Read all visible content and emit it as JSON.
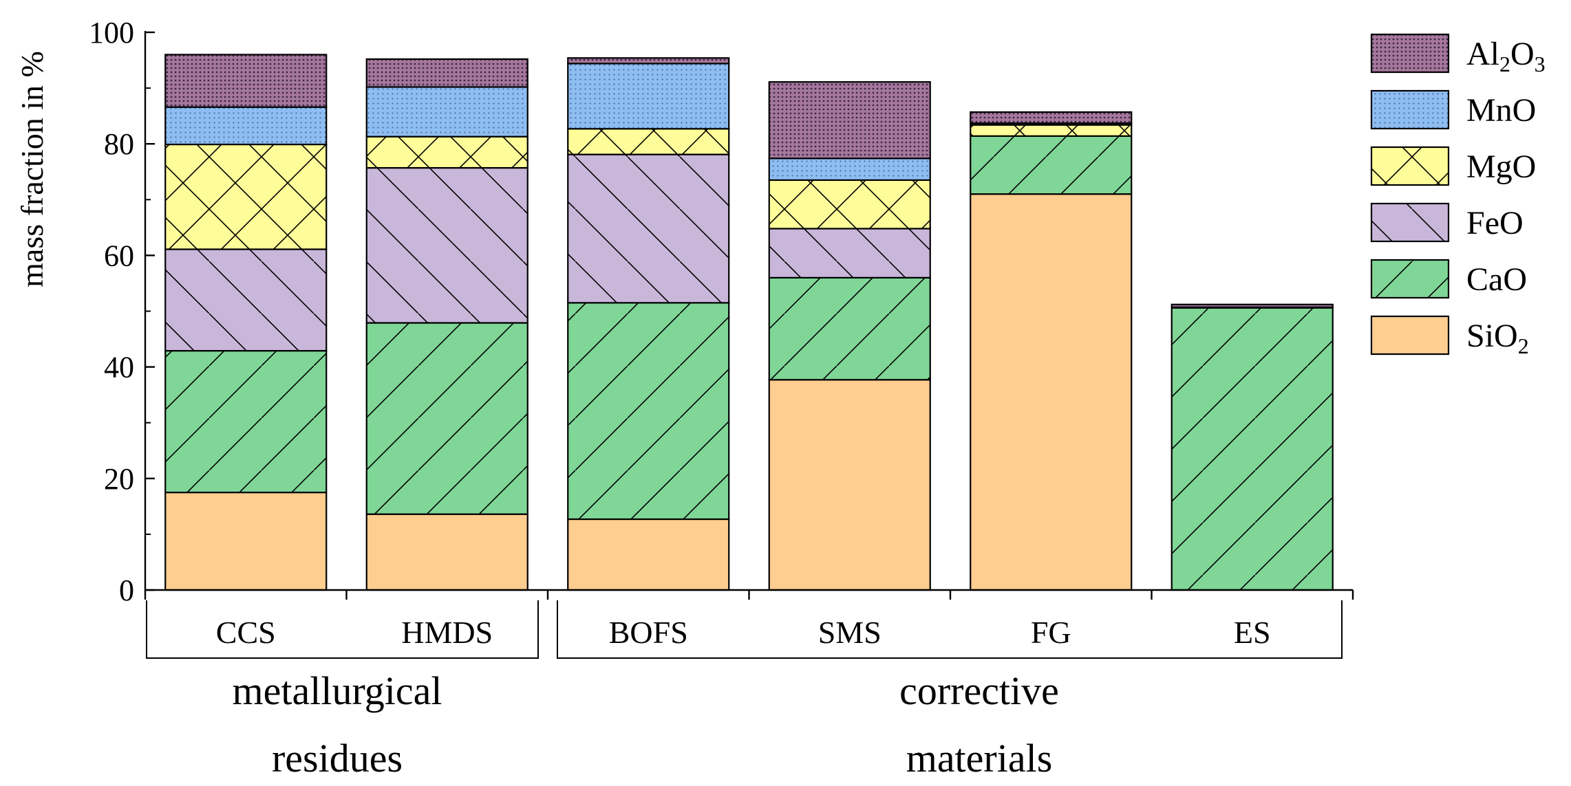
{
  "chart_data": {
    "type": "bar",
    "stacked": true,
    "ylabel": "mass fraction in %",
    "ylim": [
      0,
      100
    ],
    "yticks": [
      "0",
      "20",
      "40",
      "60",
      "80",
      "100"
    ],
    "ytick_values": [
      0,
      20,
      40,
      60,
      80,
      100
    ],
    "categories": [
      "CCS",
      "HMDS",
      "BOFS",
      "SMS",
      "FG",
      "ES"
    ],
    "groups": [
      {
        "line1": "metallurgical",
        "line2": "residues",
        "categories": [
          "CCS",
          "HMDS"
        ]
      },
      {
        "line1": "corrective",
        "line2": "materials",
        "categories": [
          "BOFS",
          "SMS",
          "FG",
          "ES"
        ]
      }
    ],
    "series": [
      {
        "name": "SiO2",
        "label_main": "SiO",
        "label_sub": "2",
        "label_tail": "",
        "color": "#FECD90",
        "pattern": "none",
        "values": [
          17.5,
          13.6,
          12.7,
          37.7,
          71.0,
          0.0
        ]
      },
      {
        "name": "CaO",
        "label_main": "CaO",
        "label_sub": "",
        "label_tail": "",
        "color": "#7FD697",
        "pattern": "diag-fwd",
        "values": [
          25.4,
          34.3,
          38.8,
          18.3,
          10.4,
          50.6
        ]
      },
      {
        "name": "FeO",
        "label_main": "FeO",
        "label_sub": "",
        "label_tail": "",
        "color": "#C9B7DA",
        "pattern": "diag-back",
        "values": [
          18.2,
          27.8,
          26.6,
          8.8,
          0.0,
          0.0
        ]
      },
      {
        "name": "MgO",
        "label_main": "MgO",
        "label_sub": "",
        "label_tail": "",
        "color": "#FFFD99",
        "pattern": "cross",
        "values": [
          18.8,
          5.6,
          4.6,
          8.7,
          2.0,
          0.0
        ]
      },
      {
        "name": "MnO",
        "label_main": "MnO",
        "label_sub": "",
        "label_tail": "",
        "color": "#8EBDF2",
        "pattern": "dots",
        "values": [
          6.7,
          8.9,
          11.7,
          3.9,
          0.3,
          0.1
        ]
      },
      {
        "name": "Al2O3",
        "label_main": "Al",
        "label_sub": "2",
        "label_tail": "O",
        "label_sub2": "3",
        "color": "#A6779D",
        "pattern": "dense-dots",
        "values": [
          9.4,
          5.0,
          1.0,
          13.7,
          2.0,
          0.5
        ]
      }
    ]
  }
}
